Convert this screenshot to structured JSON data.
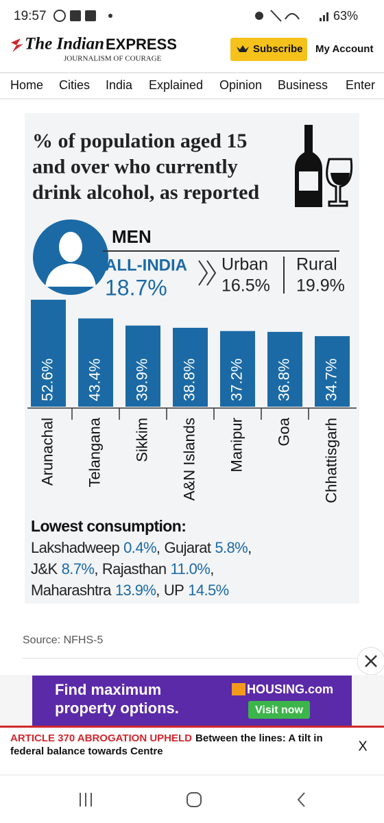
{
  "status_bar": {
    "time": "19:57",
    "battery": "63%"
  },
  "header": {
    "logo_the": "The Indian",
    "logo_express": "EXPRESS",
    "tagline": "JOURNALISM OF COURAGE",
    "subscribe": "Subscribe",
    "account": "My Account"
  },
  "nav": [
    "Home",
    "Cities",
    "India",
    "Explained",
    "Opinion",
    "Business",
    "Enter"
  ],
  "chart_data": {
    "type": "bar",
    "title_lines": [
      "% of population aged 15",
      "and over who currently",
      "drink alcohol, as reported"
    ],
    "subtitle": "MEN",
    "summary": {
      "all_india_label": "ALL-INDIA",
      "all_india_value": "18.7%",
      "urban_label": "Urban",
      "urban_value": "16.5%",
      "rural_label": "Rural",
      "rural_value": "19.9%"
    },
    "categories": [
      "Arunachal",
      "Telangana",
      "Sikkim",
      "A&N Islands",
      "Manipur",
      "Goa",
      "Chhattisgarh"
    ],
    "values": [
      52.6,
      43.4,
      39.9,
      38.8,
      37.2,
      36.8,
      34.7
    ],
    "value_labels": [
      "52.6%",
      "43.4%",
      "39.9%",
      "38.8%",
      "37.2%",
      "36.8%",
      "34.7%"
    ],
    "color": "#1b6aa5",
    "lowest": {
      "heading": "Lowest consumption:",
      "lines": [
        [
          {
            "name": "Lakshadweep",
            "value": "0.4%",
            "sep": ","
          },
          {
            "name": "Gujarat",
            "value": "5.8%",
            "sep": ","
          }
        ],
        [
          {
            "name": "J&K",
            "value": "8.7%",
            "sep": ","
          },
          {
            "name": "Rajasthan",
            "value": "11.0%",
            "sep": ","
          }
        ],
        [
          {
            "name": "Maharashtra",
            "value": "13.9%",
            "sep": ","
          },
          {
            "name": "UP",
            "value": "14.5%"
          }
        ]
      ]
    }
  },
  "source": "Source: NFHS-5",
  "ad": {
    "line1": "Find maximum",
    "line2": "property options.",
    "brand": "HOUSING.com",
    "button": "Visit now"
  },
  "ticker": {
    "tag": "ARTICLE 370 ABROGATION UPHELD",
    "line1": "Between the lines: A tilt in",
    "line2": "federal balance towards Centre",
    "close": "X"
  }
}
